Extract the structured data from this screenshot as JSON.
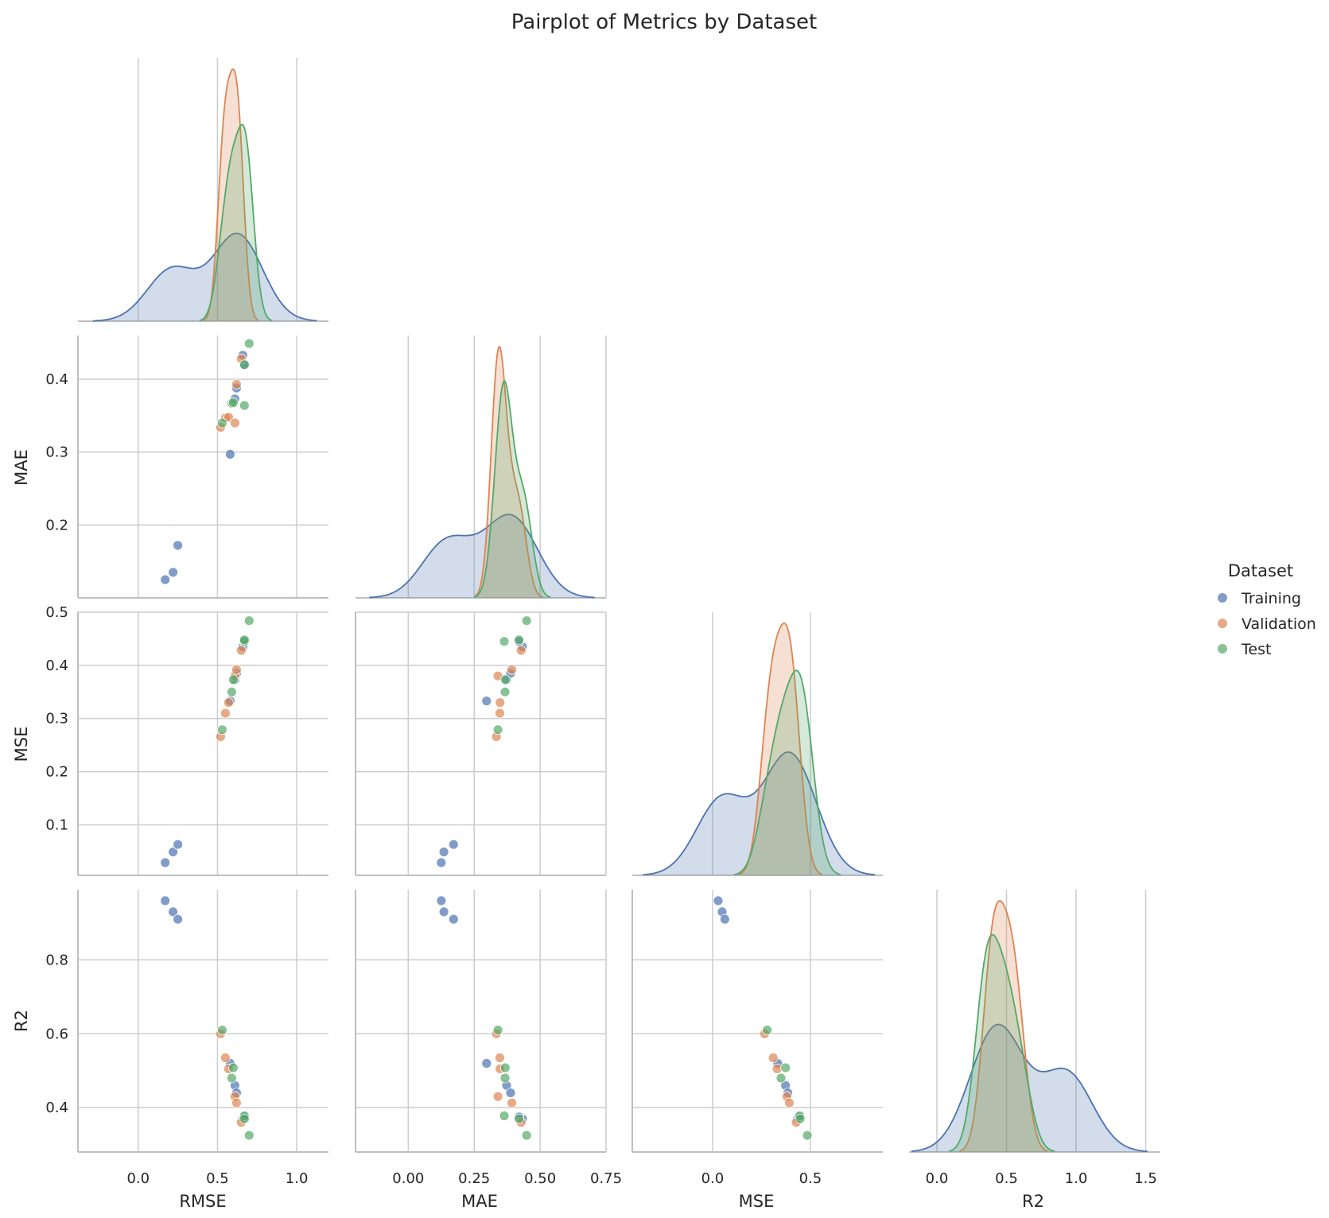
{
  "chart_data": {
    "type": "scatter",
    "title": "Pairplot of Metrics by Dataset",
    "variables": [
      "RMSE",
      "MAE",
      "MSE",
      "R2"
    ],
    "layout": "corner",
    "diagonal": "kde",
    "grid": true,
    "legend": {
      "title": "Dataset",
      "placement": "right"
    },
    "series": [
      {
        "name": "Training",
        "color": "#4c72b0",
        "points": [
          {
            "RMSE": 0.17,
            "MAE": 0.125,
            "MSE": 0.029,
            "R2": 0.96
          },
          {
            "RMSE": 0.22,
            "MAE": 0.135,
            "MSE": 0.049,
            "R2": 0.93
          },
          {
            "RMSE": 0.25,
            "MAE": 0.172,
            "MSE": 0.063,
            "R2": 0.91
          },
          {
            "RMSE": 0.58,
            "MAE": 0.297,
            "MSE": 0.333,
            "R2": 0.52
          },
          {
            "RMSE": 0.61,
            "MAE": 0.373,
            "MSE": 0.373,
            "R2": 0.46
          },
          {
            "RMSE": 0.62,
            "MAE": 0.388,
            "MSE": 0.385,
            "R2": 0.44
          },
          {
            "RMSE": 0.66,
            "MAE": 0.433,
            "MSE": 0.435,
            "R2": 0.37
          },
          {
            "RMSE": 0.67,
            "MAE": 0.42,
            "MSE": 0.445,
            "R2": 0.375
          }
        ]
      },
      {
        "name": "Validation",
        "color": "#dd8452",
        "points": [
          {
            "RMSE": 0.52,
            "MAE": 0.334,
            "MSE": 0.266,
            "R2": 0.6
          },
          {
            "RMSE": 0.55,
            "MAE": 0.347,
            "MSE": 0.31,
            "R2": 0.535
          },
          {
            "RMSE": 0.57,
            "MAE": 0.348,
            "MSE": 0.33,
            "R2": 0.505
          },
          {
            "RMSE": 0.61,
            "MAE": 0.34,
            "MSE": 0.38,
            "R2": 0.43
          },
          {
            "RMSE": 0.62,
            "MAE": 0.393,
            "MSE": 0.392,
            "R2": 0.413
          },
          {
            "RMSE": 0.65,
            "MAE": 0.428,
            "MSE": 0.428,
            "R2": 0.36
          }
        ]
      },
      {
        "name": "Test",
        "color": "#55a868",
        "points": [
          {
            "RMSE": 0.53,
            "MAE": 0.34,
            "MSE": 0.279,
            "R2": 0.61
          },
          {
            "RMSE": 0.59,
            "MAE": 0.367,
            "MSE": 0.35,
            "R2": 0.48
          },
          {
            "RMSE": 0.6,
            "MAE": 0.368,
            "MSE": 0.373,
            "R2": 0.508
          },
          {
            "RMSE": 0.67,
            "MAE": 0.364,
            "MSE": 0.445,
            "R2": 0.378
          },
          {
            "RMSE": 0.67,
            "MAE": 0.42,
            "MSE": 0.448,
            "R2": 0.37
          },
          {
            "RMSE": 0.7,
            "MAE": 0.449,
            "MSE": 0.484,
            "R2": 0.325
          }
        ]
      }
    ],
    "axes": {
      "RMSE": {
        "range": [
          -0.38,
          1.2
        ],
        "ticks": [
          "0.0",
          "0.5",
          "1.0"
        ],
        "tick_values": [
          0,
          0.5,
          1.0
        ]
      },
      "MAE": {
        "range": [
          -0.2,
          0.75
        ],
        "ticks": [
          "0.00",
          "0.25",
          "0.50",
          "0.75"
        ],
        "tick_values": [
          0,
          0.25,
          0.5,
          0.75
        ],
        "y_range": [
          0.1,
          0.46
        ],
        "y_ticks": [
          "0.2",
          "0.3",
          "0.4"
        ],
        "y_tick_values": [
          0.2,
          0.3,
          0.4
        ]
      },
      "MSE": {
        "range": [
          -0.41,
          0.87
        ],
        "ticks": [
          "0.0",
          "0.5"
        ],
        "tick_values": [
          0,
          0.5
        ],
        "y_range": [
          0.005,
          0.5
        ],
        "y_ticks": [
          "0.1",
          "0.2",
          "0.3",
          "0.4",
          "0.5"
        ],
        "y_tick_values": [
          0.1,
          0.2,
          0.3,
          0.4,
          0.5
        ]
      },
      "R2": {
        "range": [
          -0.2,
          1.6
        ],
        "ticks": [
          "0.0",
          "0.5",
          "1.0",
          "1.5"
        ],
        "tick_values": [
          0,
          0.5,
          1.0,
          1.5
        ],
        "y_range": [
          0.28,
          0.99
        ],
        "y_ticks": [
          "0.4",
          "0.6",
          "0.8"
        ],
        "y_tick_values": [
          0.4,
          0.6,
          0.8
        ]
      }
    }
  }
}
